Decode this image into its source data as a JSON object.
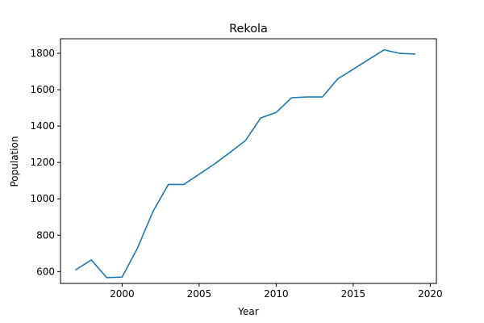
{
  "chart_data": {
    "type": "line",
    "title": "Rekola",
    "xlabel": "Year",
    "ylabel": "Population",
    "xlim": [
      1996,
      2020.4
    ],
    "ylim": [
      535,
      1880
    ],
    "xticks": [
      2000,
      2005,
      2010,
      2015,
      2020
    ],
    "yticks": [
      600,
      800,
      1000,
      1200,
      1400,
      1600,
      1800
    ],
    "grid": false,
    "x": [
      1997,
      1998,
      1999,
      2000,
      2001,
      2002,
      2003,
      2004,
      2005,
      2006,
      2007,
      2008,
      2009,
      2010,
      2011,
      2012,
      2013,
      2014,
      2015,
      2016,
      2017,
      2018,
      2019
    ],
    "series": [
      {
        "color": "#1f77b4",
        "values": [
          610,
          664,
          567,
          570,
          730,
          930,
          1079,
          1079,
          1135,
          1192,
          1255,
          1320,
          1445,
          1475,
          1556,
          1560,
          1560,
          1660,
          1712,
          1766,
          1819,
          1800,
          1796
        ]
      }
    ]
  }
}
